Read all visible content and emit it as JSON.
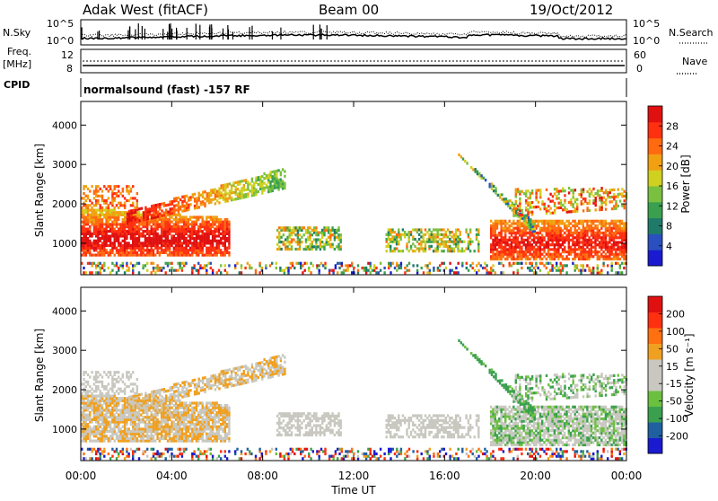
{
  "header": {
    "station": "Adak West (fitACF)",
    "beam": "Beam 00",
    "date": "19/Oct/2012"
  },
  "noise_panel": {
    "left_label": "N.Sky",
    "right_label": "N.Search",
    "left_ticks": [
      "10^5",
      "10^0"
    ],
    "right_ticks": [
      "10^5",
      "10^0"
    ]
  },
  "freq_panel": {
    "left_label_1": "Freq.",
    "left_label_2": "[MHz]",
    "right_label": "Nave",
    "left_ticks": [
      "12",
      "8"
    ],
    "right_ticks": [
      "60",
      "0"
    ]
  },
  "cpid": {
    "label": "CPID",
    "text": "normalsound (fast) -157 RF"
  },
  "colors": {
    "power": [
      "#1a1ad0",
      "#2a50c0",
      "#207a6a",
      "#3aa050",
      "#7ac040",
      "#d0d020",
      "#f0a010",
      "#ff6a10",
      "#ff3010",
      "#e01010"
    ],
    "velocity": [
      "#e01010",
      "#ff3010",
      "#ff7010",
      "#f0a020",
      "#c8c8c0",
      "#c8c8c0",
      "#6cc040",
      "#3aa050",
      "#2060a0",
      "#1a1ad0"
    ],
    "gray_scatter": "#c8c8c0"
  },
  "chart_data": [
    {
      "type": "heatmap",
      "title": "Power",
      "ylabel": "Slant Range [km]",
      "xlabel": "",
      "x_ticks": [
        "00:00",
        "04:00",
        "08:00",
        "12:00",
        "16:00",
        "20:00",
        "00:00"
      ],
      "y_ticks": [
        "1000",
        "2000",
        "3000",
        "4000"
      ],
      "ylim": [
        200,
        4600
      ],
      "xlim_hours": [
        0,
        24
      ],
      "colorbar": {
        "label": "Power [dB]",
        "tick_labels": [
          "4",
          "8",
          "12",
          "16",
          "20",
          "24",
          "28"
        ],
        "range": [
          0,
          30
        ]
      }
    },
    {
      "type": "heatmap",
      "title": "Velocity",
      "ylabel": "Slant Range [km]",
      "xlabel": "Time UT",
      "x_ticks": [
        "00:00",
        "04:00",
        "08:00",
        "12:00",
        "16:00",
        "20:00",
        "00:00"
      ],
      "y_ticks": [
        "1000",
        "2000",
        "3000",
        "4000"
      ],
      "ylim": [
        200,
        4600
      ],
      "xlim_hours": [
        0,
        24
      ],
      "colorbar": {
        "label": "Velocity [m s⁻¹]",
        "tick_labels": [
          "200",
          "100",
          "50",
          "15",
          "-15",
          "-50",
          "-100",
          "-200"
        ]
      }
    }
  ]
}
